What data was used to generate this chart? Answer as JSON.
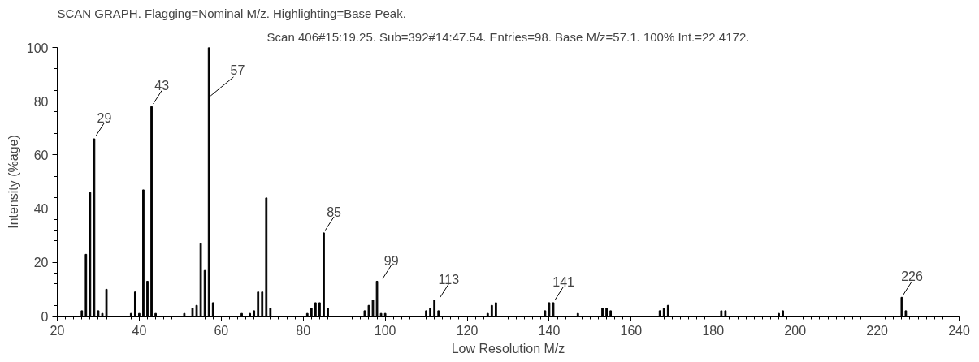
{
  "chart_data": {
    "type": "bar",
    "title": "SCAN GRAPH. Flagging=Nominal M/z. Highlighting=Base Peak.",
    "subtitle": "Scan 406#15:19.25. Sub=392#14:47.54. Entries=98. Base M/z=57.1. 100% Int.=22.4172.",
    "xlabel": "Low Resolution M/z",
    "ylabel": "Intensity (%age)",
    "x": [
      26,
      27,
      28,
      29,
      30,
      31,
      32,
      38,
      39,
      40,
      41,
      42,
      43,
      44,
      51,
      53,
      54,
      55,
      56,
      57,
      58,
      65,
      67,
      68,
      69,
      70,
      71,
      72,
      81,
      82,
      83,
      84,
      85,
      86,
      95,
      96,
      97,
      98,
      99,
      100,
      110,
      111,
      112,
      113,
      125,
      126,
      127,
      139,
      140,
      141,
      147,
      153,
      154,
      155,
      167,
      168,
      169,
      182,
      183,
      196,
      197,
      226,
      227
    ],
    "series": [
      {
        "color": "#000000",
        "values": [
          2,
          23,
          46,
          66,
          2,
          1,
          10,
          1,
          9,
          1,
          47,
          13,
          78,
          1,
          1,
          3,
          4,
          27,
          17,
          100,
          5,
          1,
          1,
          2,
          9,
          9,
          44,
          3,
          1,
          3,
          5,
          5,
          31,
          3,
          2,
          4,
          6,
          13,
          1,
          1,
          2,
          3,
          6,
          2,
          1,
          4,
          5,
          2,
          5,
          5,
          1,
          3,
          3,
          2,
          2,
          3,
          4,
          2,
          2,
          1,
          2,
          7,
          2
        ]
      }
    ],
    "xlim": [
      20,
      240
    ],
    "xticks": [
      20,
      40,
      60,
      80,
      100,
      120,
      140,
      160,
      180,
      200,
      220,
      240
    ],
    "ylim": [
      0,
      100
    ],
    "yticks": [
      0,
      20,
      40,
      60,
      80,
      100
    ],
    "grid": false,
    "annotations": [
      {
        "text": "29",
        "x": 29,
        "y": 66
      },
      {
        "text": "43",
        "x": 43,
        "y": 78
      },
      {
        "text": "57",
        "x": 57,
        "y": 100
      },
      {
        "text": "85",
        "x": 85,
        "y": 31
      },
      {
        "text": "99",
        "x": 99,
        "y": 13
      },
      {
        "text": "113",
        "x": 113,
        "y": 6
      },
      {
        "text": "141",
        "x": 141,
        "y": 5
      },
      {
        "text": "226",
        "x": 226,
        "y": 7
      }
    ]
  }
}
